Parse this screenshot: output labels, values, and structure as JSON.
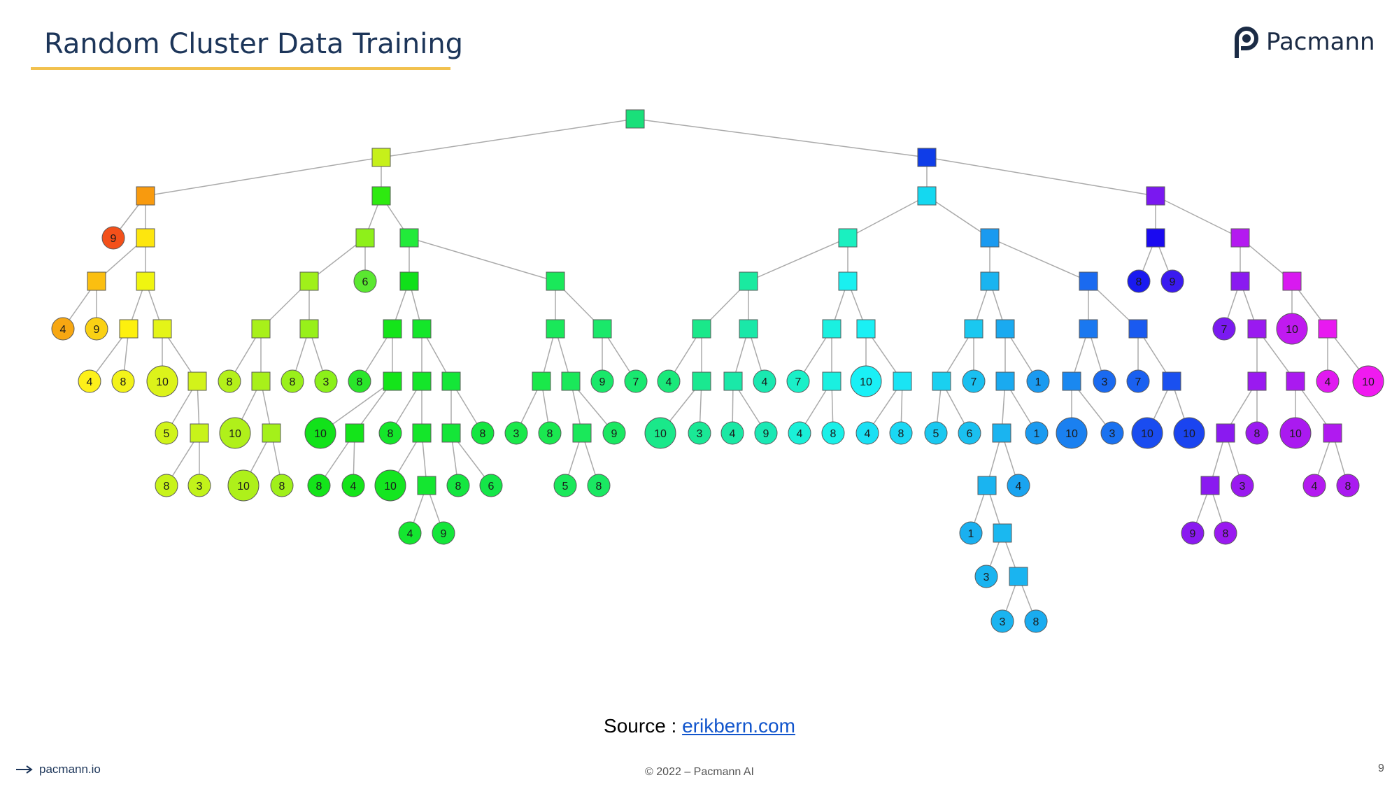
{
  "slide": {
    "title": "Random Cluster Data Training",
    "logo_text": "Pacmann",
    "source_prefix": "Source :",
    "source_link": "erikbern.com",
    "footer_site": "pacmann.io",
    "footer_copyright": "© 2022 – Pacmann AI",
    "page_number": "9",
    "accent_color": "#f2c14e",
    "title_color": "#1c3559"
  },
  "tree": {
    "edge_color": "#aaaaaa",
    "nodes": [
      {
        "id": "root",
        "t": "s",
        "c": "#19e07a"
      },
      {
        "id": "L",
        "t": "s",
        "c": "#c6f01a",
        "p": "root"
      },
      {
        "id": "R",
        "t": "s",
        "c": "#0f3de8",
        "p": "root"
      },
      {
        "id": "LL",
        "t": "s",
        "c": "#f89a0e",
        "p": "L"
      },
      {
        "id": "LR",
        "t": "s",
        "c": "#2eea10",
        "p": "L"
      },
      {
        "id": "LL_9",
        "t": "c",
        "c": "#f3501a",
        "l": "9",
        "p": "LL"
      },
      {
        "id": "LL2",
        "t": "s",
        "c": "#fde60e",
        "p": "LL"
      },
      {
        "id": "LL2a",
        "t": "s",
        "c": "#fbbf10",
        "p": "LL2"
      },
      {
        "id": "LL2b",
        "t": "s",
        "c": "#f0f510",
        "p": "LL2"
      },
      {
        "id": "LL2a_4",
        "t": "c",
        "c": "#f7a712",
        "l": "4",
        "p": "LL2a"
      },
      {
        "id": "LL2a_9",
        "t": "c",
        "c": "#fad114",
        "l": "9",
        "p": "LL2a"
      },
      {
        "id": "LL2b_a",
        "t": "s",
        "c": "#fdf00e",
        "p": "LL2b"
      },
      {
        "id": "LL2b_b",
        "t": "s",
        "c": "#e4f418",
        "p": "LL2b"
      },
      {
        "id": "LL2b_a_4",
        "t": "c",
        "c": "#fdf01a",
        "l": "4",
        "p": "LL2b_a"
      },
      {
        "id": "LL2b_a_8",
        "t": "c",
        "c": "#f3f31a",
        "l": "8",
        "p": "LL2b_a"
      },
      {
        "id": "LL2b_b_10",
        "t": "c",
        "c": "#dcf31a",
        "l": "10",
        "p": "LL2b_b",
        "big": true
      },
      {
        "id": "LL2b_b_s",
        "t": "s",
        "c": "#d2f31a",
        "p": "LL2b_b"
      },
      {
        "id": "LL2b_b_s_5",
        "t": "c",
        "c": "#d0f31a",
        "l": "5",
        "p": "LL2b_b_s"
      },
      {
        "id": "LL2b_b_s2",
        "t": "s",
        "c": "#c8f31a",
        "p": "LL2b_b_s"
      },
      {
        "id": "LL2b_b_s2_8",
        "t": "c",
        "c": "#c8f31a",
        "l": "8",
        "p": "LL2b_b_s2"
      },
      {
        "id": "LL2b_b_s2_3",
        "t": "c",
        "c": "#c2f31a",
        "l": "3",
        "p": "LL2b_b_s2"
      },
      {
        "id": "LRa",
        "t": "s",
        "c": "#8ef01a",
        "p": "LR"
      },
      {
        "id": "LRb",
        "t": "s",
        "c": "#22ea3a",
        "p": "LR"
      },
      {
        "id": "LRa1",
        "t": "s",
        "c": "#a0f01a",
        "p": "LRa"
      },
      {
        "id": "LRa_6",
        "t": "c",
        "c": "#5ae830",
        "l": "6",
        "p": "LRa"
      },
      {
        "id": "LRa1a",
        "t": "s",
        "c": "#a8f01a",
        "p": "LRa1"
      },
      {
        "id": "LRa1b",
        "t": "s",
        "c": "#98f01a",
        "p": "LRa1"
      },
      {
        "id": "LRa1a_8",
        "t": "c",
        "c": "#b4f01a",
        "l": "8",
        "p": "LRa1a"
      },
      {
        "id": "LRa1a_s",
        "t": "s",
        "c": "#a8f01a",
        "p": "LRa1a"
      },
      {
        "id": "LRa1a_s_10",
        "t": "c",
        "c": "#b0f01a",
        "l": "10",
        "p": "LRa1a_s",
        "big": true
      },
      {
        "id": "LRa1a_s2",
        "t": "s",
        "c": "#a4f01a",
        "p": "LRa1a_s"
      },
      {
        "id": "LRa1a_s2_10",
        "t": "c",
        "c": "#aef01a",
        "l": "10",
        "p": "LRa1a_s2",
        "big": true
      },
      {
        "id": "LRa1a_s2_8",
        "t": "c",
        "c": "#a0f01a",
        "l": "8",
        "p": "LRa1a_s2"
      },
      {
        "id": "LRa1b_8",
        "t": "c",
        "c": "#9af01a",
        "l": "8",
        "p": "LRa1b"
      },
      {
        "id": "LRa1b_3",
        "t": "c",
        "c": "#8cf01a",
        "l": "3",
        "p": "LRa1b"
      },
      {
        "id": "LRb1",
        "t": "s",
        "c": "#10e01a",
        "p": "LRb"
      },
      {
        "id": "LRb2",
        "t": "s",
        "c": "#1ae85a",
        "p": "LRb"
      },
      {
        "id": "LRb1a",
        "t": "s",
        "c": "#14e41a",
        "p": "LRb1"
      },
      {
        "id": "LRb1b",
        "t": "s",
        "c": "#14e62a",
        "p": "LRb1"
      },
      {
        "id": "LRb1a_8",
        "t": "c",
        "c": "#2ae62a",
        "l": "8",
        "p": "LRb1a"
      },
      {
        "id": "LRb1a_s",
        "t": "s",
        "c": "#14e41a",
        "p": "LRb1a"
      },
      {
        "id": "LRb1a_s_10",
        "t": "c",
        "c": "#12e21a",
        "l": "10",
        "p": "LRb1a_s",
        "big": true
      },
      {
        "id": "LRb1a_s2",
        "t": "s",
        "c": "#14e41a",
        "p": "LRb1a_s"
      },
      {
        "id": "LRb1a_s2_8",
        "t": "c",
        "c": "#14e41a",
        "l": "8",
        "p": "LRb1a_s2"
      },
      {
        "id": "LRb1a_s2_4",
        "t": "c",
        "c": "#14e41a",
        "l": "4",
        "p": "LRb1a_s2"
      },
      {
        "id": "LRb1b_a",
        "t": "s",
        "c": "#14e62a",
        "p": "LRb1b"
      },
      {
        "id": "LRb1b_b",
        "t": "s",
        "c": "#14e638",
        "p": "LRb1b"
      },
      {
        "id": "LRb1b_a_8",
        "t": "c",
        "c": "#14e62a",
        "l": "8",
        "p": "LRb1b_a"
      },
      {
        "id": "LRb1b_a_s",
        "t": "s",
        "c": "#14e62a",
        "p": "LRb1b_a"
      },
      {
        "id": "LRb1b_a_s_10",
        "t": "c",
        "c": "#14e620",
        "l": "10",
        "p": "LRb1b_a_s",
        "big": true
      },
      {
        "id": "LRb1b_a_s2",
        "t": "s",
        "c": "#14e630",
        "p": "LRb1b_a_s"
      },
      {
        "id": "LRb1b_a_s2_4",
        "t": "c",
        "c": "#14e630",
        "l": "4",
        "p": "LRb1b_a_s2"
      },
      {
        "id": "LRb1b_a_s2_9",
        "t": "c",
        "c": "#14e63a",
        "l": "9",
        "p": "LRb1b_a_s2"
      },
      {
        "id": "LRb1b_b_s",
        "t": "s",
        "c": "#14e638",
        "p": "LRb1b_b"
      },
      {
        "id": "LRb1b_b_8",
        "t": "c",
        "c": "#14e640",
        "l": "8",
        "p": "LRb1b_b"
      },
      {
        "id": "LRb1b_b_s_8",
        "t": "c",
        "c": "#14e640",
        "l": "8",
        "p": "LRb1b_b_s"
      },
      {
        "id": "LRb1b_b_s_6",
        "t": "c",
        "c": "#14e648",
        "l": "6",
        "p": "LRb1b_b_s"
      },
      {
        "id": "LRb2a",
        "t": "s",
        "c": "#1ae85a",
        "p": "LRb2"
      },
      {
        "id": "LRb2b",
        "t": "s",
        "c": "#1ae86a",
        "p": "LRb2"
      },
      {
        "id": "LRb2a_s1",
        "t": "s",
        "c": "#1ae84a",
        "p": "LRb2a"
      },
      {
        "id": "LRb2a_s2",
        "t": "s",
        "c": "#1ae85a",
        "p": "LRb2a"
      },
      {
        "id": "LRb2a_s1_3",
        "t": "c",
        "c": "#1ae84a",
        "l": "3",
        "p": "LRb2a_s1"
      },
      {
        "id": "LRb2a_s1_8",
        "t": "c",
        "c": "#1ae850",
        "l": "8",
        "p": "LRb2a_s1"
      },
      {
        "id": "LRb2a_s2_s",
        "t": "s",
        "c": "#1ae85a",
        "p": "LRb2a_s2"
      },
      {
        "id": "LRb2a_s2_9",
        "t": "c",
        "c": "#1ae862",
        "l": "9",
        "p": "LRb2a_s2"
      },
      {
        "id": "LRb2a_s2_s_5",
        "t": "c",
        "c": "#1ae85a",
        "l": "5",
        "p": "LRb2a_s2_s"
      },
      {
        "id": "LRb2a_s2_s_8",
        "t": "c",
        "c": "#1ae862",
        "l": "8",
        "p": "LRb2a_s2_s"
      },
      {
        "id": "LRb2b_9",
        "t": "c",
        "c": "#1ae86a",
        "l": "9",
        "p": "LRb2b"
      },
      {
        "id": "LRb2b_7",
        "t": "c",
        "c": "#1ae870",
        "l": "7",
        "p": "LRb2b"
      },
      {
        "id": "RL",
        "t": "s",
        "c": "#14d8f0",
        "p": "R"
      },
      {
        "id": "RR",
        "t": "s",
        "c": "#7a18f0",
        "p": "R"
      },
      {
        "id": "RLa",
        "t": "s",
        "c": "#1af0c0",
        "p": "RL"
      },
      {
        "id": "RLb",
        "t": "s",
        "c": "#1a9af0",
        "p": "RL"
      },
      {
        "id": "RLa1",
        "t": "s",
        "c": "#1aeaa0",
        "p": "RLa"
      },
      {
        "id": "RLa2",
        "t": "s",
        "c": "#1af0f0",
        "p": "RLa"
      },
      {
        "id": "RLa1a",
        "t": "s",
        "c": "#1ae88a",
        "p": "RLa1"
      },
      {
        "id": "RLa1b",
        "t": "s",
        "c": "#1ae8a8",
        "p": "RLa1"
      },
      {
        "id": "RLa1a_4",
        "t": "c",
        "c": "#1ae87a",
        "l": "4",
        "p": "RLa1a"
      },
      {
        "id": "RLa1a_s",
        "t": "s",
        "c": "#1ae890",
        "p": "RLa1a"
      },
      {
        "id": "RLa1a_s_10",
        "t": "c",
        "c": "#1ae88a",
        "l": "10",
        "p": "RLa1a_s",
        "big": true
      },
      {
        "id": "RLa1a_s_3",
        "t": "c",
        "c": "#1ae896",
        "l": "3",
        "p": "RLa1a_s"
      },
      {
        "id": "RLa1b_s",
        "t": "s",
        "c": "#1ae8a8",
        "p": "RLa1b"
      },
      {
        "id": "RLa1b_4",
        "t": "c",
        "c": "#1ae8b0",
        "l": "4",
        "p": "RLa1b"
      },
      {
        "id": "RLa1b_s_4",
        "t": "c",
        "c": "#1ae8a4",
        "l": "4",
        "p": "RLa1b_s"
      },
      {
        "id": "RLa1b_s_9",
        "t": "c",
        "c": "#1ae8b4",
        "l": "9",
        "p": "RLa1b_s"
      },
      {
        "id": "RLa2a",
        "t": "s",
        "c": "#1af0e0",
        "p": "RLa2"
      },
      {
        "id": "RLa2b",
        "t": "s",
        "c": "#1af0f4",
        "p": "RLa2"
      },
      {
        "id": "RLa2a_7",
        "t": "c",
        "c": "#1af0c8",
        "l": "7",
        "p": "RLa2a"
      },
      {
        "id": "RLa2a_s",
        "t": "s",
        "c": "#1af0e0",
        "p": "RLa2a"
      },
      {
        "id": "RLa2a_s_4",
        "t": "c",
        "c": "#1af0d8",
        "l": "4",
        "p": "RLa2a_s"
      },
      {
        "id": "RLa2a_s_8",
        "t": "c",
        "c": "#1af0e8",
        "l": "8",
        "p": "RLa2a_s"
      },
      {
        "id": "RLa2b_10",
        "t": "c",
        "c": "#1af0f6",
        "l": "10",
        "p": "RLa2b",
        "big": true
      },
      {
        "id": "RLa2b_s",
        "t": "s",
        "c": "#1ae4f4",
        "p": "RLa2b"
      },
      {
        "id": "RLa2b_s_4",
        "t": "c",
        "c": "#1ae0f4",
        "l": "4",
        "p": "RLa2b_s"
      },
      {
        "id": "RLa2b_s_8",
        "t": "c",
        "c": "#1ad8f4",
        "l": "8",
        "p": "RLa2b_s"
      },
      {
        "id": "RLb1",
        "t": "s",
        "c": "#1ab4f0",
        "p": "RLb"
      },
      {
        "id": "RLb2",
        "t": "s",
        "c": "#1a6af0",
        "p": "RLb"
      },
      {
        "id": "RLb1a",
        "t": "s",
        "c": "#1ac8f0",
        "p": "RLb1"
      },
      {
        "id": "RLb1b",
        "t": "s",
        "c": "#1aaaf0",
        "p": "RLb1"
      },
      {
        "id": "RLb1a_s",
        "t": "s",
        "c": "#1ad0f0",
        "p": "RLb1a"
      },
      {
        "id": "RLb1a_7",
        "t": "c",
        "c": "#1ac0f0",
        "l": "7",
        "p": "RLb1a"
      },
      {
        "id": "RLb1a_s_5",
        "t": "c",
        "c": "#1ac8f0",
        "l": "5",
        "p": "RLb1a_s"
      },
      {
        "id": "RLb1a_s_6",
        "t": "c",
        "c": "#1ac0f0",
        "l": "6",
        "p": "RLb1a_s"
      },
      {
        "id": "RLb1b_s",
        "t": "s",
        "c": "#1aaaf0",
        "p": "RLb1b"
      },
      {
        "id": "RLb1b_1",
        "t": "c",
        "c": "#1a9af0",
        "l": "1",
        "p": "RLb1b"
      },
      {
        "id": "RLb1b_s_s",
        "t": "s",
        "c": "#1ab4f0",
        "p": "RLb1b_s"
      },
      {
        "id": "RLb1b_s_1",
        "t": "c",
        "c": "#1a9af0",
        "l": "1",
        "p": "RLb1b_s"
      },
      {
        "id": "RLb1b_s_s_s",
        "t": "s",
        "c": "#1ab4f0",
        "p": "RLb1b_s_s"
      },
      {
        "id": "RLb1b_s_s_4",
        "t": "c",
        "c": "#1aa4f0",
        "l": "4",
        "p": "RLb1b_s_s"
      },
      {
        "id": "RLb1b_s_s_s_1",
        "t": "c",
        "c": "#1ab0f0",
        "l": "1",
        "p": "RLb1b_s_s_s"
      },
      {
        "id": "RLb1b_s_s_s_s",
        "t": "s",
        "c": "#1ab8f0",
        "p": "RLb1b_s_s_s"
      },
      {
        "id": "RLb1b_s_s_s_s_3",
        "t": "c",
        "c": "#1ab4f0",
        "l": "3",
        "p": "RLb1b_s_s_s_s"
      },
      {
        "id": "RLb1b_s_s_s_s_s",
        "t": "s",
        "c": "#1ab4f0",
        "p": "RLb1b_s_s_s_s"
      },
      {
        "id": "RLb1b_s_s_s_s_s_3",
        "t": "c",
        "c": "#1ab4f0",
        "l": "3",
        "p": "RLb1b_s_s_s_s_s"
      },
      {
        "id": "RLb1b_s_s_s_s_s_8",
        "t": "c",
        "c": "#1aacf0",
        "l": "8",
        "p": "RLb1b_s_s_s_s_s"
      },
      {
        "id": "RLb2a",
        "t": "s",
        "c": "#1a78f0",
        "p": "RLb2"
      },
      {
        "id": "RLb2b",
        "t": "s",
        "c": "#1a5af0",
        "p": "RLb2"
      },
      {
        "id": "RLb2a_s",
        "t": "s",
        "c": "#1a88f0",
        "p": "RLb2a"
      },
      {
        "id": "RLb2a_3",
        "t": "c",
        "c": "#1a6af0",
        "l": "3",
        "p": "RLb2a"
      },
      {
        "id": "RLb2a_s_10",
        "t": "c",
        "c": "#1a80f0",
        "l": "10",
        "p": "RLb2a_s",
        "big": true
      },
      {
        "id": "RLb2a_s_3",
        "t": "c",
        "c": "#1a72f0",
        "l": "3",
        "p": "RLb2a_s"
      },
      {
        "id": "RLb2b_7",
        "t": "c",
        "c": "#1a60f0",
        "l": "7",
        "p": "RLb2b"
      },
      {
        "id": "RLb2b_s",
        "t": "s",
        "c": "#1a50f0",
        "p": "RLb2b"
      },
      {
        "id": "RLb2b_s_10a",
        "t": "c",
        "c": "#1a4cf0",
        "l": "10",
        "p": "RLb2b_s",
        "big": true
      },
      {
        "id": "RLb2b_s_10b",
        "t": "c",
        "c": "#1a44f0",
        "l": "10",
        "p": "RLb2b_s",
        "big": true
      },
      {
        "id": "RRa",
        "t": "s",
        "c": "#1a0af0",
        "p": "RR"
      },
      {
        "id": "RRb",
        "t": "s",
        "c": "#b41af0",
        "p": "RR"
      },
      {
        "id": "RRa_8",
        "t": "c",
        "c": "#1a1af0",
        "l": "8",
        "p": "RRa"
      },
      {
        "id": "RRa_9",
        "t": "c",
        "c": "#3a1af0",
        "l": "9",
        "p": "RRa"
      },
      {
        "id": "RRb1",
        "t": "s",
        "c": "#8a1af0",
        "p": "RRb"
      },
      {
        "id": "RRb2",
        "t": "s",
        "c": "#d81af0",
        "p": "RRb"
      },
      {
        "id": "RRb1_7",
        "t": "c",
        "c": "#7a1af0",
        "l": "7",
        "p": "RRb1"
      },
      {
        "id": "RRb1_s",
        "t": "s",
        "c": "#9a1af0",
        "p": "RRb1"
      },
      {
        "id": "RRb1_s_a",
        "t": "s",
        "c": "#9a1af0",
        "p": "RRb1_s"
      },
      {
        "id": "RRb1_s_b",
        "t": "s",
        "c": "#aa1af0",
        "p": "RRb1_s"
      },
      {
        "id": "RRb1_s_a_s",
        "t": "s",
        "c": "#8a1af0",
        "p": "RRb1_s_a"
      },
      {
        "id": "RRb1_s_a_8",
        "t": "c",
        "c": "#9a1af0",
        "l": "8",
        "p": "RRb1_s_a"
      },
      {
        "id": "RRb1_s_a_s_s",
        "t": "s",
        "c": "#8a1af0",
        "p": "RRb1_s_a_s"
      },
      {
        "id": "RRb1_s_a_s_3",
        "t": "c",
        "c": "#9a1af0",
        "l": "3",
        "p": "RRb1_s_a_s"
      },
      {
        "id": "RRb1_s_a_s_s_9",
        "t": "c",
        "c": "#8a1af0",
        "l": "9",
        "p": "RRb1_s_a_s_s"
      },
      {
        "id": "RRb1_s_a_s_s_8",
        "t": "c",
        "c": "#9a1af0",
        "l": "8",
        "p": "RRb1_s_a_s_s"
      },
      {
        "id": "RRb1_s_b_10",
        "t": "c",
        "c": "#aa1af0",
        "l": "10",
        "p": "RRb1_s_b",
        "big": true
      },
      {
        "id": "RRb1_s_b_s",
        "t": "s",
        "c": "#b01af0",
        "p": "RRb1_s_b"
      },
      {
        "id": "RRb1_s_b_s_4",
        "t": "c",
        "c": "#b41af0",
        "l": "4",
        "p": "RRb1_s_b_s"
      },
      {
        "id": "RRb1_s_b_s_8",
        "t": "c",
        "c": "#aa1af0",
        "l": "8",
        "p": "RRb1_s_b_s"
      },
      {
        "id": "RRb2_10",
        "t": "c",
        "c": "#c01af0",
        "l": "10",
        "p": "RRb2",
        "big": true
      },
      {
        "id": "RRb2_s",
        "t": "s",
        "c": "#e81af0",
        "p": "RRb2"
      },
      {
        "id": "RRb2_s_4",
        "t": "c",
        "c": "#e01af0",
        "l": "4",
        "p": "RRb2_s"
      },
      {
        "id": "RRb2_s_10",
        "t": "c",
        "c": "#f01af0",
        "l": "10",
        "p": "RRb2_s",
        "big": true
      }
    ]
  }
}
